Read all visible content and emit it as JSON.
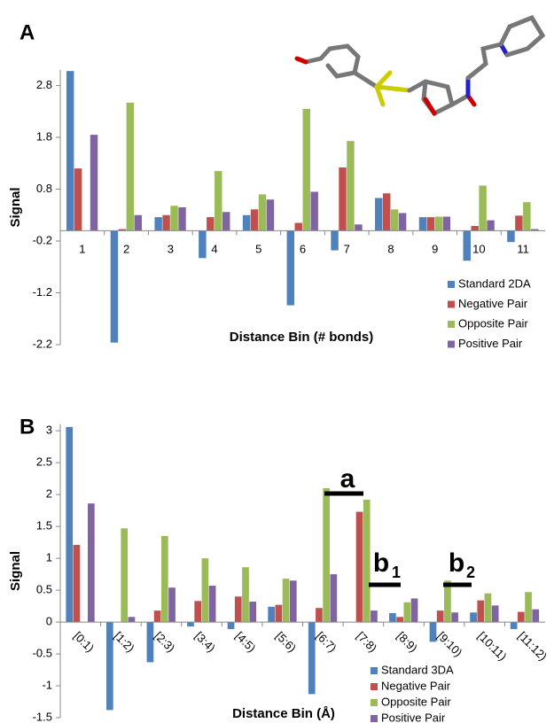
{
  "chart_data": [
    {
      "type": "bar",
      "panel_label": "A",
      "ylabel": "Signal",
      "xlabel": "Distance Bin (# bonds)",
      "categories": [
        "1",
        "2",
        "3",
        "4",
        "5",
        "6",
        "7",
        "8",
        "9",
        "10",
        "11"
      ],
      "series": [
        {
          "name": "Standard 2DA",
          "color": "#4f81bd",
          "values": [
            3.08,
            -2.16,
            0.26,
            -0.53,
            0.3,
            -1.44,
            -0.38,
            0.63,
            0.26,
            -0.58,
            -0.22
          ]
        },
        {
          "name": "Negative Pair",
          "color": "#c0504d",
          "values": [
            1.2,
            0.03,
            0.3,
            0.26,
            0.41,
            0.15,
            1.22,
            0.72,
            0.26,
            0.09,
            0.29
          ]
        },
        {
          "name": "Opposite Pair",
          "color": "#9bbb59",
          "values": [
            0,
            2.47,
            0.48,
            1.15,
            0.7,
            2.35,
            1.73,
            0.41,
            0.27,
            0.87,
            0.55
          ]
        },
        {
          "name": "Positive Pair",
          "color": "#8064a2",
          "values": [
            1.85,
            0.3,
            0.45,
            0.36,
            0.6,
            0.75,
            0.12,
            0.34,
            0.27,
            0.2,
            0.03
          ]
        }
      ],
      "ylim": [
        -2.2,
        3.1
      ],
      "yticks": [
        -2.2,
        -1.2,
        -0.2,
        0.8,
        1.8,
        2.8
      ],
      "legend": "lower right"
    },
    {
      "type": "bar",
      "panel_label": "B",
      "ylabel": "Signal",
      "xlabel": "Distance Bin (Å)",
      "categories": [
        "[0:1)",
        "[1:2)",
        "[2:3)",
        "[3:4)",
        "[4:5)",
        "[5:6)",
        "[6:7)",
        "[7:8)",
        "[8:9)",
        "[9:10)",
        "[10:11)",
        "[11:12)"
      ],
      "series": [
        {
          "name": "Standard 3DA",
          "color": "#4f81bd",
          "values": [
            3.06,
            -1.38,
            -0.63,
            -0.07,
            -0.11,
            0.24,
            -1.13,
            0,
            0.14,
            -0.31,
            0.15,
            -0.11
          ]
        },
        {
          "name": "Negative Pair",
          "color": "#c0504d",
          "values": [
            1.21,
            0,
            0.18,
            0.33,
            0.4,
            0.27,
            0.22,
            1.73,
            0.08,
            0.18,
            0.34,
            0.16
          ]
        },
        {
          "name": "Opposite Pair",
          "color": "#9bbb59",
          "values": [
            0,
            1.47,
            1.35,
            1.0,
            0.86,
            0.68,
            2.1,
            1.92,
            0.31,
            0.65,
            0.45,
            0.47
          ]
        },
        {
          "name": "Positive Pair",
          "color": "#8064a2",
          "values": [
            1.86,
            0.08,
            0.54,
            0.57,
            0.32,
            0.65,
            0.75,
            0.18,
            0.37,
            0.15,
            0.26,
            0.2
          ]
        }
      ],
      "ylim": [
        -1.5,
        3.1
      ],
      "yticks": [
        -1.5,
        -1,
        -0.5,
        0,
        0.5,
        1,
        1.5,
        2,
        2.5,
        3
      ],
      "legend": "lower right",
      "annotations": [
        {
          "text": "a"
        },
        {
          "text": "b",
          "subscript": "1"
        },
        {
          "text": "b",
          "subscript": "2"
        }
      ]
    }
  ]
}
